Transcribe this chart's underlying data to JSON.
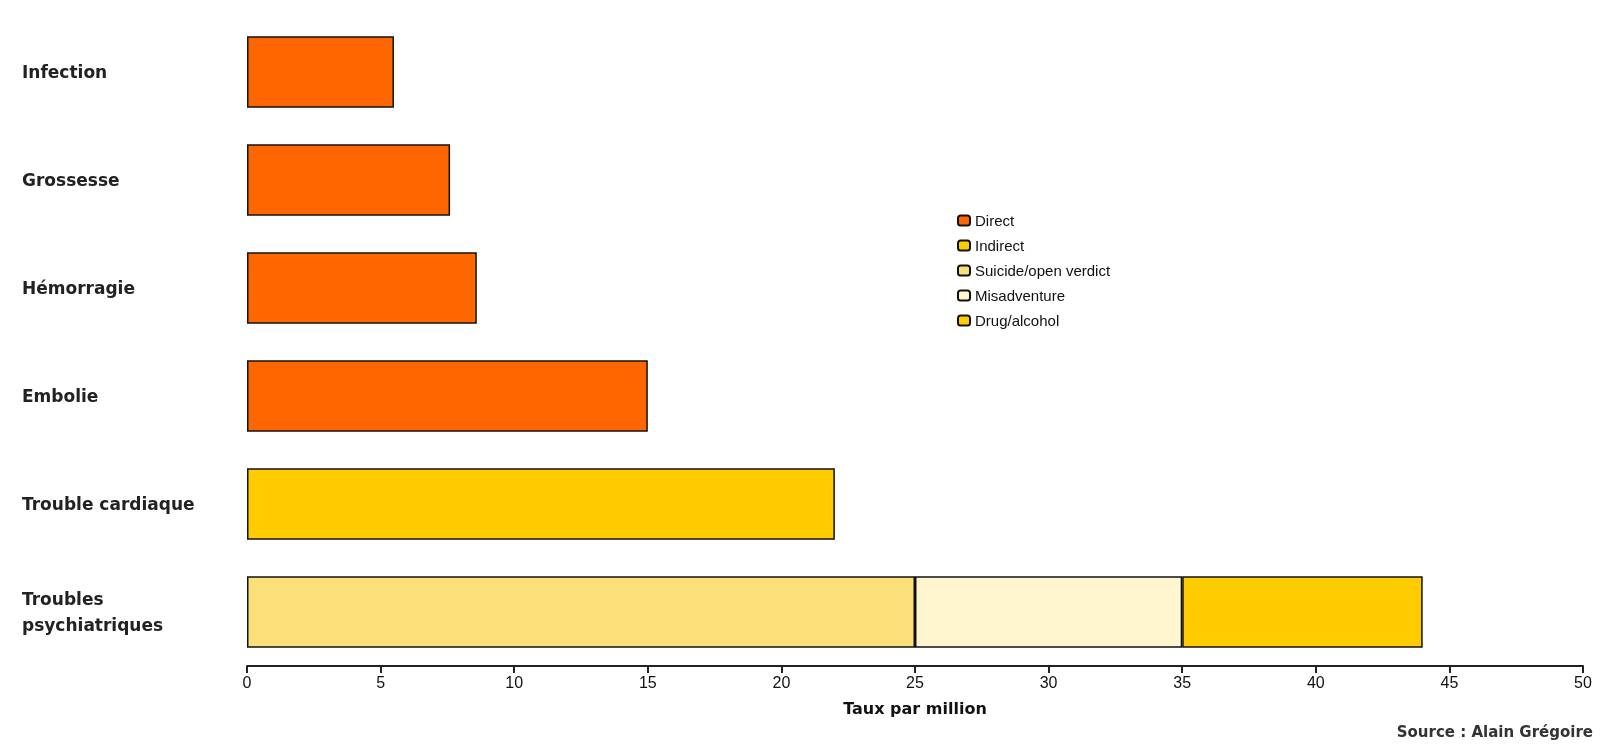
{
  "chart_data": {
    "type": "bar",
    "orientation": "horizontal",
    "stacked": true,
    "categories": [
      "Infection",
      "Grossesse",
      "Hémorragie",
      "Embolie",
      "Trouble cardiaque",
      "Troubles psychiatriques"
    ],
    "series": [
      {
        "name": "Direct",
        "color": "#ff6600",
        "values": [
          5.5,
          7.6,
          8.6,
          15,
          null,
          null
        ]
      },
      {
        "name": "Indirect",
        "color": "#ffcc00",
        "values": [
          null,
          null,
          null,
          null,
          22,
          null
        ]
      },
      {
        "name": "Suicide/open verdict",
        "color": "#fbe07a",
        "values": [
          null,
          null,
          null,
          null,
          null,
          25
        ]
      },
      {
        "name": "Misadventure",
        "color": "#fff6d0",
        "values": [
          null,
          null,
          null,
          null,
          null,
          10
        ]
      },
      {
        "name": "Drug/alcohol",
        "color": "#ffcc00",
        "values": [
          null,
          null,
          null,
          null,
          null,
          9
        ]
      }
    ],
    "xlabel": "Taux par million",
    "xlim": [
      0,
      50
    ],
    "xticks": [
      0,
      5,
      10,
      15,
      20,
      25,
      30,
      35,
      40,
      45,
      50
    ],
    "grid": false,
    "legend": "right",
    "annotations": [
      "Source : Alain Grégoire"
    ]
  }
}
